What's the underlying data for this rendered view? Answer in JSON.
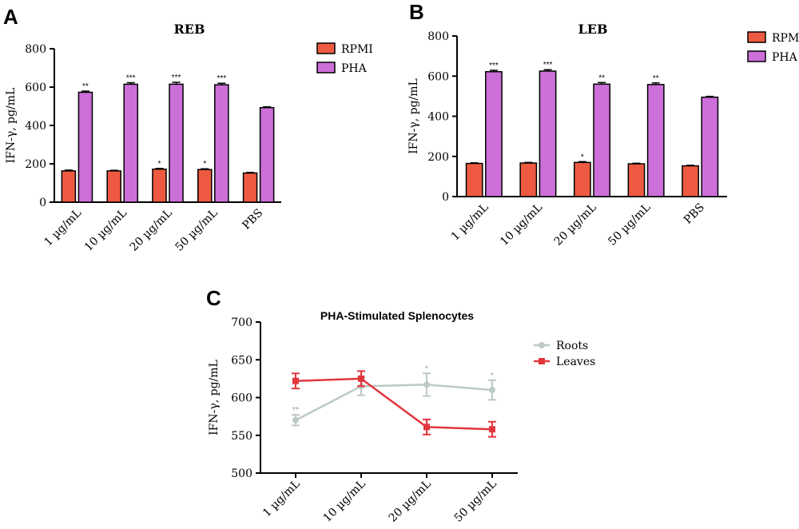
{
  "chart_data": [
    {
      "panel_label": "A",
      "type": "bar",
      "title": "REB",
      "ylabel": "IFN-γ, pg/mL",
      "ylim": [
        0,
        800
      ],
      "yticks": [
        0,
        200,
        400,
        600,
        800
      ],
      "categories": [
        "1 µg/mL",
        "10 µg/mL",
        "20 µg/mL",
        "50 µg/mL",
        "PBS"
      ],
      "series": [
        {
          "name": "RPMI",
          "color": "#ee5a41",
          "values": [
            163,
            163,
            172,
            170,
            152
          ],
          "errors": [
            4,
            3,
            4,
            4,
            3
          ],
          "significance": [
            "",
            "",
            "*",
            "*",
            ""
          ]
        },
        {
          "name": "PHA",
          "color": "#cc6fd8",
          "values": [
            573,
            615,
            615,
            612,
            493
          ],
          "errors": [
            6,
            8,
            10,
            8,
            4
          ],
          "significance": [
            "**",
            "***",
            "***",
            "***",
            ""
          ]
        }
      ],
      "legend": "top-right"
    },
    {
      "panel_label": "B",
      "type": "bar",
      "title": "LEB",
      "ylabel": "IFN-γ, pg/mL",
      "ylim": [
        0,
        800
      ],
      "yticks": [
        0,
        200,
        400,
        600,
        800
      ],
      "categories": [
        "1 µg/mL",
        "10 µg/mL",
        "20 µg/mL",
        "50 µg/mL",
        "PBS"
      ],
      "series": [
        {
          "name": "RPMI",
          "color": "#ee5a41",
          "values": [
            165,
            167,
            170,
            163,
            153
          ],
          "errors": [
            3,
            3,
            4,
            3,
            3
          ],
          "significance": [
            "",
            "",
            "*",
            "",
            ""
          ]
        },
        {
          "name": "PHA",
          "color": "#cc6fd8",
          "values": [
            622,
            625,
            560,
            558,
            495
          ],
          "errors": [
            7,
            7,
            8,
            8,
            4
          ],
          "significance": [
            "***",
            "***",
            "**",
            "**",
            ""
          ]
        }
      ],
      "legend": "top-right"
    },
    {
      "panel_label": "C",
      "type": "line",
      "title": "PHA-Stimulated Splenocytes",
      "ylabel": "IFN-γ, pg/mL",
      "ylim": [
        500,
        700
      ],
      "yticks": [
        500,
        550,
        600,
        650,
        700
      ],
      "categories": [
        "1 µg/mL",
        "10 µg/mL",
        "20 µg/mL",
        "50 µg/mL"
      ],
      "series": [
        {
          "name": "Roots",
          "color": "#bcc9c4",
          "values": [
            570,
            615,
            617,
            610
          ],
          "errors": [
            7,
            12,
            15,
            13
          ],
          "significance": [
            "**",
            "",
            "*",
            "*"
          ]
        },
        {
          "name": "Leaves",
          "color": "#e2363d",
          "values": [
            622,
            625,
            561,
            558
          ],
          "errors": [
            10,
            10,
            10,
            10
          ],
          "significance": [
            "",
            "",
            "",
            ""
          ]
        }
      ],
      "legend": "right"
    }
  ]
}
